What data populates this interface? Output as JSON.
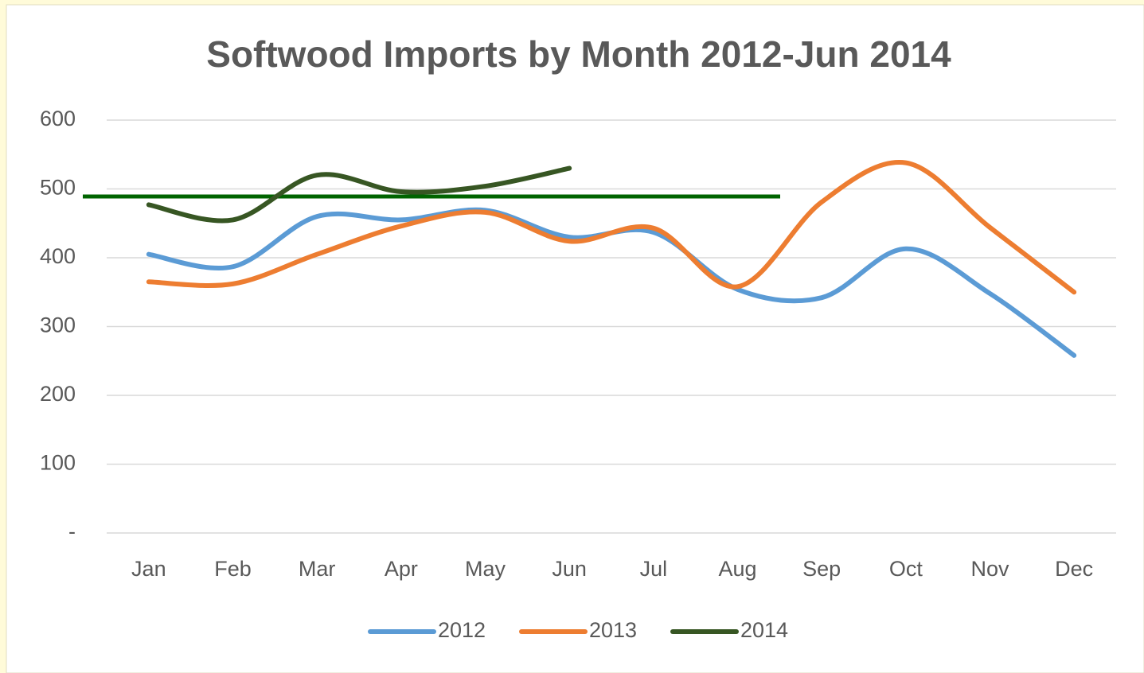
{
  "chart_data": {
    "type": "line",
    "title": "Softwood Imports by Month 2012-Jun 2014",
    "categories": [
      "Jan",
      "Feb",
      "Mar",
      "Apr",
      "May",
      "Jun",
      "Jul",
      "Aug",
      "Sep",
      "Oct",
      "Nov",
      "Dec"
    ],
    "series": [
      {
        "name": "2012",
        "color": "#5b9bd5",
        "values": [
          405,
          387,
          460,
          455,
          469,
          430,
          437,
          354,
          342,
          413,
          348,
          258
        ]
      },
      {
        "name": "2013",
        "color": "#ed7d31",
        "values": [
          365,
          362,
          405,
          446,
          466,
          424,
          443,
          358,
          481,
          538,
          444,
          350
        ]
      },
      {
        "name": "2014",
        "color": "#375623",
        "values": [
          477,
          455,
          520,
          496,
          504,
          530,
          null,
          null,
          null,
          null,
          null,
          null
        ]
      }
    ],
    "reference_line": {
      "value": 489,
      "color": "#006400"
    },
    "ylim": [
      0,
      600
    ],
    "yticks": [
      {
        "value": 0,
        "label": "-"
      },
      100,
      200,
      300,
      400,
      500,
      600
    ],
    "grid": true,
    "smooth": true,
    "legend": "bottom"
  }
}
